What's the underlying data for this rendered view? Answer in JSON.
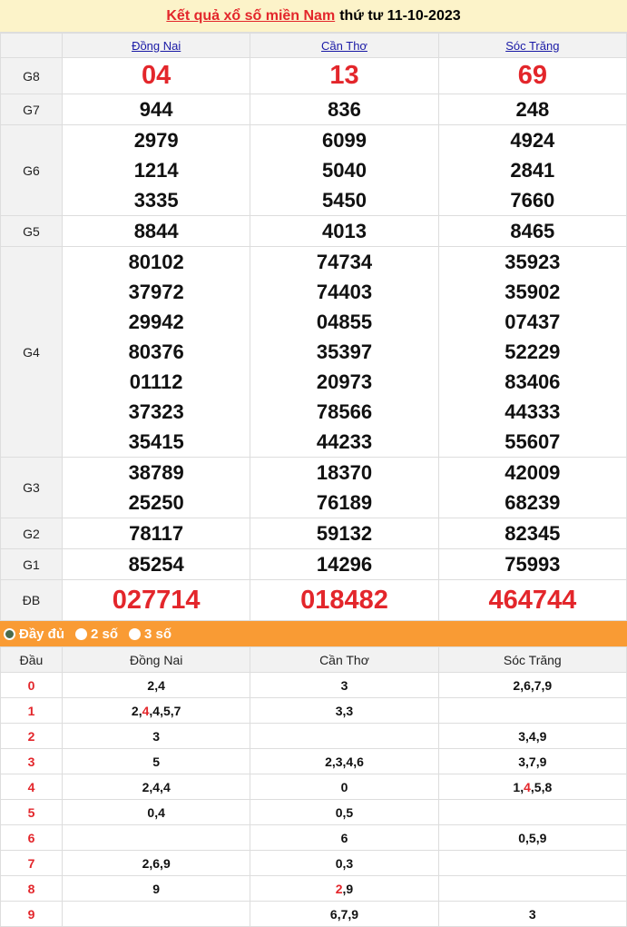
{
  "header": {
    "title_link": "Kết quả xổ số miền Nam",
    "title_rest": "thứ tư 11-10-2023"
  },
  "provinces": [
    "Đồng Nai",
    "Cần Thơ",
    "Sóc Trăng"
  ],
  "prizes": [
    {
      "label": "G8",
      "values": [
        [
          "04"
        ],
        [
          "13"
        ],
        [
          "69"
        ]
      ]
    },
    {
      "label": "G7",
      "values": [
        [
          "944"
        ],
        [
          "836"
        ],
        [
          "248"
        ]
      ]
    },
    {
      "label": "G6",
      "values": [
        [
          "2979",
          "1214",
          "3335"
        ],
        [
          "6099",
          "5040",
          "5450"
        ],
        [
          "4924",
          "2841",
          "7660"
        ]
      ]
    },
    {
      "label": "G5",
      "values": [
        [
          "8844"
        ],
        [
          "4013"
        ],
        [
          "8465"
        ]
      ]
    },
    {
      "label": "G4",
      "values": [
        [
          "80102",
          "37972",
          "29942",
          "80376",
          "01112",
          "37323",
          "35415"
        ],
        [
          "74734",
          "74403",
          "04855",
          "35397",
          "20973",
          "78566",
          "44233"
        ],
        [
          "35923",
          "35902",
          "07437",
          "52229",
          "83406",
          "44333",
          "55607"
        ]
      ]
    },
    {
      "label": "G3",
      "values": [
        [
          "38789",
          "25250"
        ],
        [
          "18370",
          "76189"
        ],
        [
          "42009",
          "68239"
        ]
      ]
    },
    {
      "label": "G2",
      "values": [
        [
          "78117"
        ],
        [
          "59132"
        ],
        [
          "82345"
        ]
      ]
    },
    {
      "label": "G1",
      "values": [
        [
          "85254"
        ],
        [
          "14296"
        ],
        [
          "75993"
        ]
      ]
    },
    {
      "label": "ĐB",
      "values": [
        [
          "027714"
        ],
        [
          "018482"
        ],
        [
          "464744"
        ]
      ]
    }
  ],
  "filter": {
    "options": [
      "Đầy đủ",
      "2 số",
      "3 số"
    ],
    "selected": "Đầy đủ"
  },
  "loto": {
    "head_label": "Đầu",
    "columns": [
      "Đồng Nai",
      "Cần Thơ",
      "Sóc Trăng"
    ],
    "rows": [
      {
        "head": "0",
        "cells": [
          [
            {
              "t": "2,4"
            }
          ],
          [
            {
              "t": "3"
            }
          ],
          [
            {
              "t": "2,6,7,9"
            }
          ]
        ]
      },
      {
        "head": "1",
        "cells": [
          [
            {
              "t": "2,"
            },
            {
              "t": "4",
              "red": true
            },
            {
              "t": ",4,5,7"
            }
          ],
          [
            {
              "t": "3,3"
            }
          ],
          []
        ]
      },
      {
        "head": "2",
        "cells": [
          [
            {
              "t": "3"
            }
          ],
          [],
          [
            {
              "t": "3,4,9"
            }
          ]
        ]
      },
      {
        "head": "3",
        "cells": [
          [
            {
              "t": "5"
            }
          ],
          [
            {
              "t": "2,3,4,6"
            }
          ],
          [
            {
              "t": "3,7,9"
            }
          ]
        ]
      },
      {
        "head": "4",
        "cells": [
          [
            {
              "t": "2,4,4"
            }
          ],
          [
            {
              "t": "0"
            }
          ],
          [
            {
              "t": "1,"
            },
            {
              "t": "4",
              "red": true
            },
            {
              "t": ",5,8"
            }
          ]
        ]
      },
      {
        "head": "5",
        "cells": [
          [
            {
              "t": "0,4"
            }
          ],
          [
            {
              "t": "0,5"
            }
          ],
          []
        ]
      },
      {
        "head": "6",
        "cells": [
          [],
          [
            {
              "t": "6"
            }
          ],
          [
            {
              "t": "0,5,9"
            }
          ]
        ]
      },
      {
        "head": "7",
        "cells": [
          [
            {
              "t": "2,6,9"
            }
          ],
          [
            {
              "t": "0,3"
            }
          ],
          []
        ]
      },
      {
        "head": "8",
        "cells": [
          [
            {
              "t": "9"
            }
          ],
          [
            {
              "t": "2",
              "red": true
            },
            {
              "t": ",9"
            }
          ],
          []
        ]
      },
      {
        "head": "9",
        "cells": [
          [],
          [
            {
              "t": "6,7,9"
            }
          ],
          [
            {
              "t": "3"
            }
          ]
        ]
      }
    ]
  },
  "colors": {
    "red": "#e3262b",
    "orange": "#f99b34",
    "title_bg": "#fcf3c9"
  }
}
